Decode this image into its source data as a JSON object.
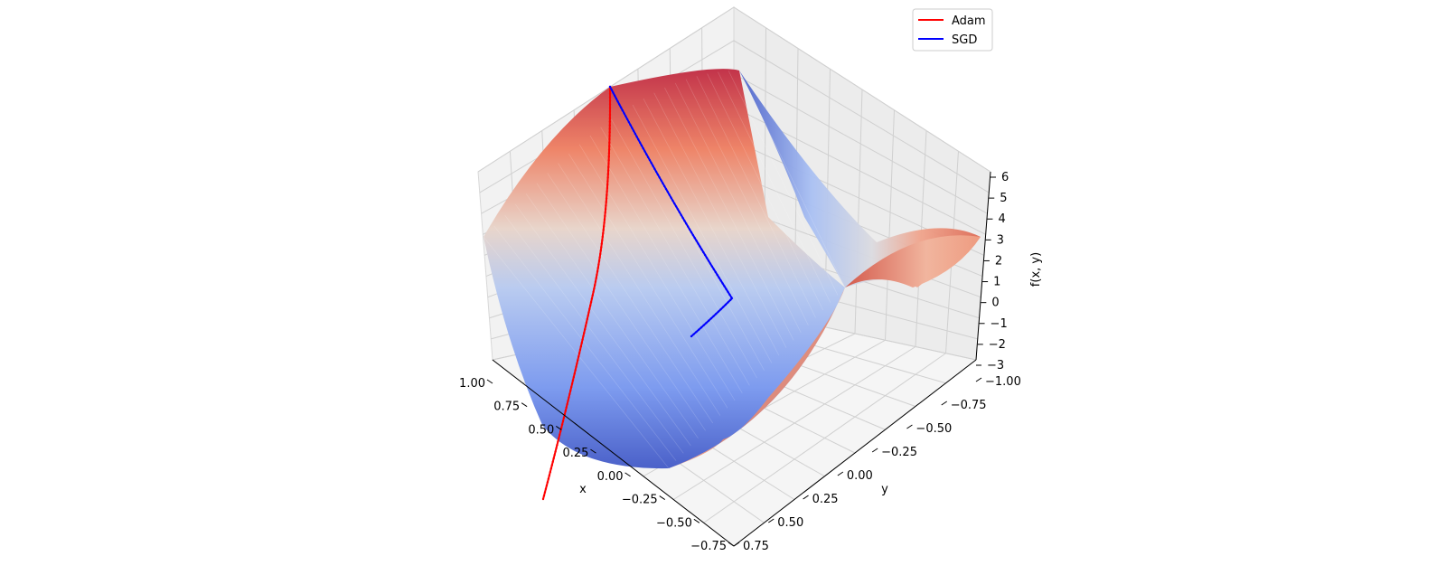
{
  "chart_data": {
    "type": "surface3d",
    "title": "",
    "surface": {
      "function": "f(x, y) = x^2 - y^2 (saddle, shown over a trimmed domain)",
      "x_range": [
        -1,
        1
      ],
      "y_range": [
        -1,
        1
      ],
      "colormap": [
        "#3b4cc0",
        "#dddddd",
        "#b40426"
      ]
    },
    "axes": {
      "x": {
        "label": "x",
        "ticks": [
          "1.00",
          "0.75",
          "0.50",
          "0.25",
          "0.00",
          "−0.25",
          "−0.50",
          "−0.75"
        ]
      },
      "y": {
        "label": "y",
        "ticks": [
          "−1.00",
          "−0.75",
          "−0.50",
          "−0.25",
          "0.00",
          "0.25",
          "0.50",
          "0.75"
        ]
      },
      "z": {
        "label": "f(x, y)",
        "ticks": [
          "6",
          "5",
          "4",
          "3",
          "2",
          "1",
          "0",
          "−1",
          "−2",
          "−3"
        ],
        "zlim": [
          -3,
          6
        ]
      }
    },
    "grid": true,
    "legend_position": "top-right",
    "series": [
      {
        "name": "Adam",
        "color": "#ff0000"
      },
      {
        "name": "SGD",
        "color": "#0000ff"
      }
    ]
  }
}
